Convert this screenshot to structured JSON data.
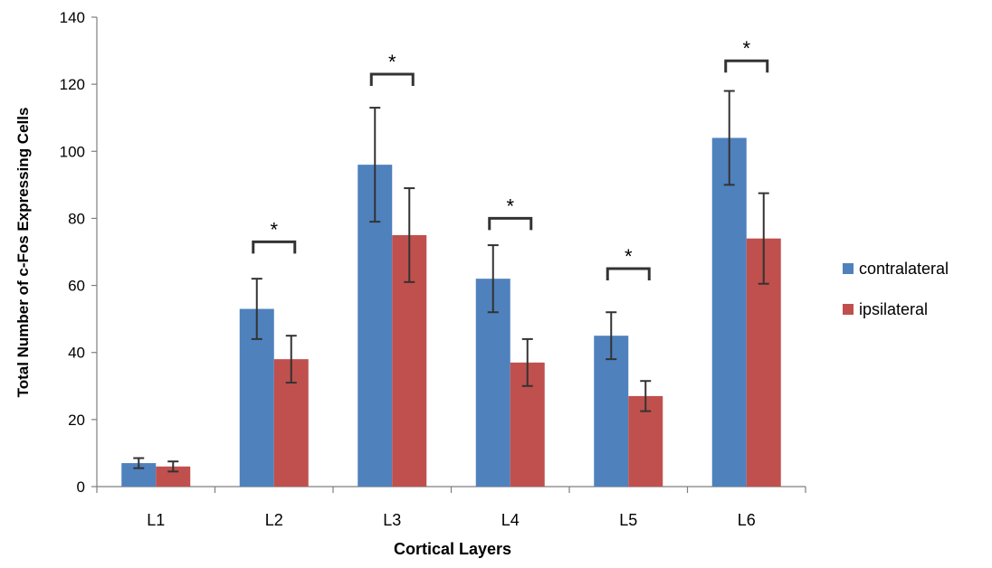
{
  "chart_data": {
    "type": "bar",
    "title": "",
    "xlabel": "Cortical Layers",
    "ylabel": "Total Number of c-Fos Expressing Cells",
    "categories": [
      "L1",
      "L2",
      "L3",
      "L4",
      "L5",
      "L6"
    ],
    "ylim": [
      0,
      140
    ],
    "yticks": [
      0,
      20,
      40,
      60,
      80,
      100,
      120,
      140
    ],
    "grid": false,
    "legend_position": "right",
    "series": [
      {
        "name": "contralateral",
        "color": "#4f81bd",
        "values": [
          7,
          53,
          96,
          62,
          45,
          104
        ],
        "errors": [
          1.5,
          9,
          17,
          10,
          7,
          14
        ]
      },
      {
        "name": "ipsilateral",
        "color": "#c0504d",
        "values": [
          6,
          38,
          75,
          37,
          27,
          74
        ],
        "errors": [
          1.5,
          7,
          14,
          7,
          4.5,
          13.5
        ]
      }
    ],
    "significance": {
      "marker": "*",
      "categories": [
        "L2",
        "L3",
        "L4",
        "L5",
        "L6"
      ],
      "bracket_y": [
        73,
        123,
        80,
        65,
        127
      ]
    }
  }
}
